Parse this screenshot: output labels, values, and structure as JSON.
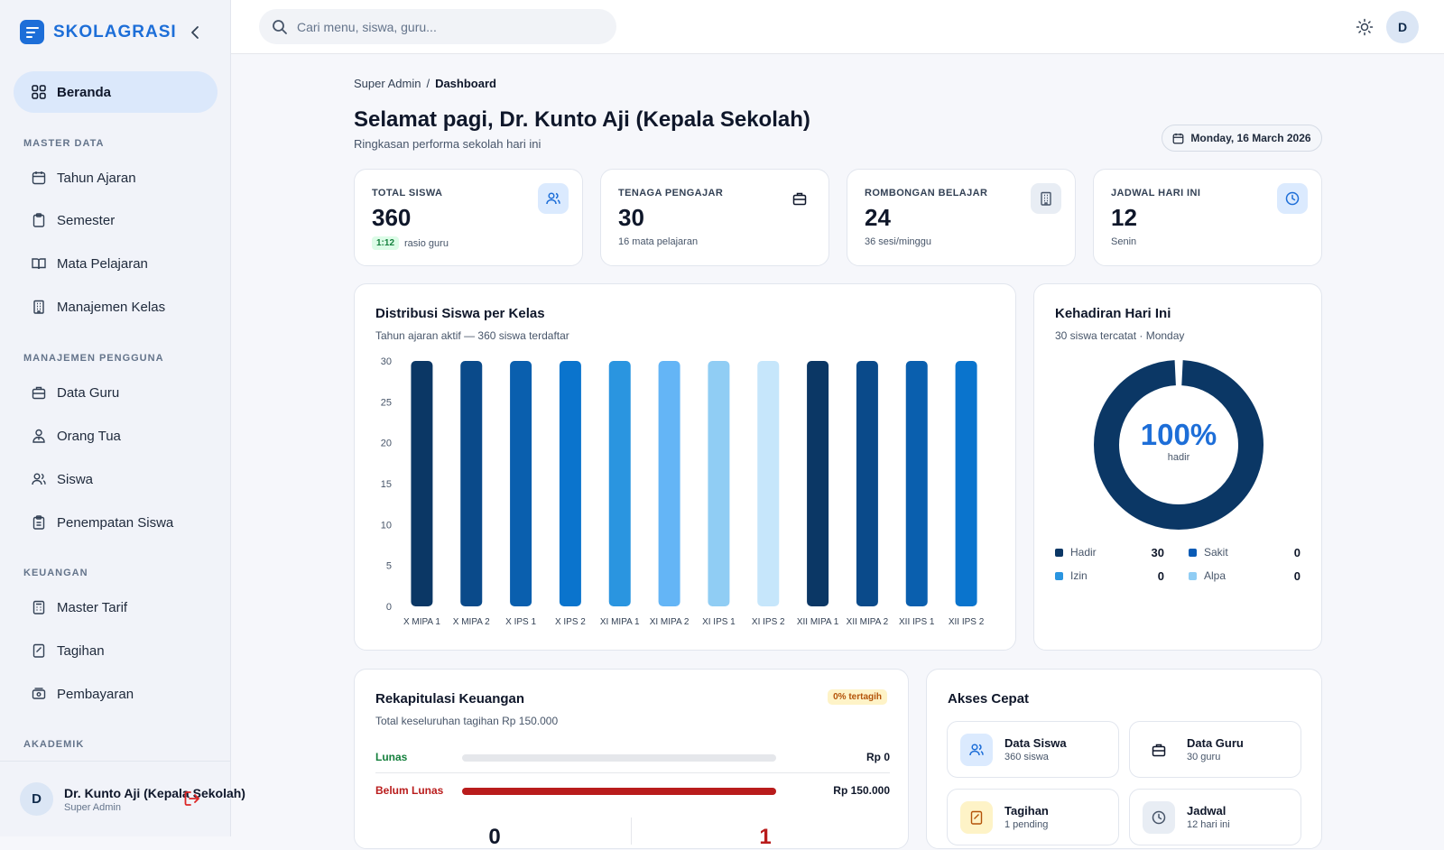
{
  "brand": {
    "name": "SKOLAGRASI"
  },
  "sidebar": {
    "active": "Beranda",
    "sections": [
      {
        "title": "MASTER DATA",
        "items": [
          "Tahun Ajaran",
          "Semester",
          "Mata Pelajaran",
          "Manajemen Kelas"
        ]
      },
      {
        "title": "MANAJEMEN PENGGUNA",
        "items": [
          "Data Guru",
          "Orang Tua",
          "Siswa",
          "Penempatan Siswa"
        ]
      },
      {
        "title": "KEUANGAN",
        "items": [
          "Master Tarif",
          "Tagihan",
          "Pembayaran"
        ]
      },
      {
        "title": "AKADEMIK",
        "items": []
      }
    ],
    "user": {
      "initial": "D",
      "name": "Dr. Kunto Aji (Kepala Sekolah)",
      "role": "Super Admin"
    }
  },
  "topbar": {
    "search_placeholder": "Cari menu, siswa, guru...",
    "avatar": "D"
  },
  "breadcrumb": {
    "root": "Super Admin",
    "sep": "/",
    "current": "Dashboard"
  },
  "header": {
    "greeting": "Selamat pagi, Dr. Kunto Aji (Kepala Sekolah)",
    "subtitle": "Ringkasan performa sekolah hari ini",
    "date": "Monday, 16 March 2026"
  },
  "stats": [
    {
      "label": "TOTAL SISWA",
      "value": "360",
      "badge": "1:12",
      "sub": "rasio guru",
      "icon": "users-icon"
    },
    {
      "label": "TENAGA PENGAJAR",
      "value": "30",
      "sub": "16 mata pelajaran",
      "icon": "briefcase-icon"
    },
    {
      "label": "ROMBONGAN BELAJAR",
      "value": "24",
      "sub": "36 sesi/minggu",
      "icon": "building-icon"
    },
    {
      "label": "JADWAL HARI INI",
      "value": "12",
      "sub": "Senin",
      "icon": "clock-icon"
    }
  ],
  "distribution": {
    "title": "Distribusi Siswa per Kelas",
    "subtitle": "Tahun ajaran aktif — 360 siswa terdaftar"
  },
  "attendance": {
    "title": "Kehadiran Hari Ini",
    "subtitle": "30 siswa tercatat · Monday",
    "percent": "100%",
    "percent_label": "hadir",
    "legend": [
      {
        "label": "Hadir",
        "value": "30",
        "color": "#0b3765"
      },
      {
        "label": "Sakit",
        "value": "0",
        "color": "#0a5bb5"
      },
      {
        "label": "Izin",
        "value": "0",
        "color": "#2a95e0"
      },
      {
        "label": "Alpa",
        "value": "0",
        "color": "#90cdf4"
      }
    ]
  },
  "finance": {
    "title": "Rekapitulasi Keuangan",
    "badge": "0% tertagih",
    "subtitle": "Total keseluruhan tagihan Rp 150.000",
    "rows": [
      {
        "label": "Lunas",
        "amount": "Rp 0",
        "fraction": 0,
        "color": "#15803d"
      },
      {
        "label": "Belum Lunas",
        "amount": "Rp 150.000",
        "fraction": 1,
        "color": "#b91c1c"
      }
    ],
    "counts": [
      "0",
      "1"
    ]
  },
  "quick": {
    "title": "Akses Cepat",
    "items": [
      {
        "title": "Data Siswa",
        "sub": "360 siswa",
        "icon": "users-icon",
        "bg": "#dbeafe"
      },
      {
        "title": "Data Guru",
        "sub": "30 guru",
        "icon": "briefcase-icon",
        "bg": "#ffffff"
      },
      {
        "title": "Tagihan",
        "sub": "1 pending",
        "icon": "receipt-icon",
        "bg": "#fef3c7"
      },
      {
        "title": "Jadwal",
        "sub": "12 hari ini",
        "icon": "clock-icon",
        "bg": "#e8edf4"
      }
    ]
  },
  "chart_data": [
    {
      "type": "bar",
      "categories": [
        "X MIPA 1",
        "X MIPA 2",
        "X IPS 1",
        "X IPS 2",
        "XI MIPA 1",
        "XI MIPA 2",
        "XI IPS 1",
        "XI IPS 2",
        "XII MIPA 1",
        "XII MIPA 2",
        "XII IPS 1",
        "XII IPS 2"
      ],
      "values": [
        30,
        30,
        30,
        30,
        30,
        30,
        30,
        30,
        30,
        30,
        30,
        30
      ],
      "colors": [
        "#0b3765",
        "#0a4a8a",
        "#0a5fae",
        "#0a74cd",
        "#2a95e0",
        "#64b5f6",
        "#90cdf4",
        "#c6e6fb",
        "#0b3765",
        "#0a4a8a",
        "#0a5fae",
        "#0a74cd"
      ],
      "yticks": [
        0,
        5,
        10,
        15,
        20,
        25,
        30
      ],
      "ylim": [
        0,
        30
      ]
    },
    {
      "type": "pie",
      "categories": [
        "Hadir",
        "Sakit",
        "Izin",
        "Alpa"
      ],
      "values": [
        30,
        0,
        0,
        0
      ]
    }
  ]
}
